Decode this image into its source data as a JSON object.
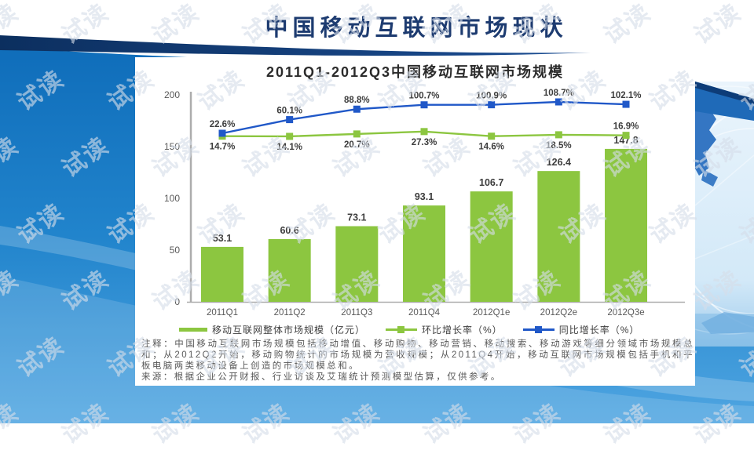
{
  "slide": {
    "title": "中国移动互联网市场现状",
    "watermark_text": "试读"
  },
  "chart_data": {
    "type": "bar",
    "title": "2011Q1-2012Q3中国移动互联网市场规模",
    "categories": [
      "2011Q1",
      "2011Q2",
      "2011Q3",
      "2011Q4",
      "2012Q1e",
      "2012Q2e",
      "2012Q3e"
    ],
    "series": [
      {
        "name": "移动互联网整体市场规模（亿元）",
        "type": "bar",
        "color": "#8CC640",
        "values": [
          53.1,
          60.6,
          73.1,
          93.1,
          106.7,
          126.4,
          147.8
        ]
      },
      {
        "name": "环比增长率（%）",
        "type": "line",
        "color": "#8CC640",
        "values": [
          14.7,
          14.1,
          20.7,
          27.3,
          14.6,
          18.5,
          16.9
        ]
      },
      {
        "name": "同比增长率（%）",
        "type": "line",
        "color": "#2058C8",
        "values": [
          22.6,
          60.1,
          88.8,
          100.7,
          100.9,
          108.7,
          102.1
        ]
      }
    ],
    "y_axis": {
      "ticks": [
        0,
        50,
        100,
        150,
        200
      ],
      "max": 200
    },
    "legend_position": "bottom",
    "grid": false
  },
  "footnotes": {
    "note": "注释：中国移动互联网市场规模包括移动增值、移动购物、移动营销、移动搜索、移动游戏等细分领域市场规模总和；从2012Q2开始，移动购物统计的市场规模为营收规模；从2011Q4开始，移动互联网市场规模包括手机和平板电脑两类移动设备上创造的市场规模总和。",
    "source": "来源：根据企业公开财报、行业访谈及艾瑞统计预测模型估算，仅供参考。"
  },
  "colors": {
    "title_navy": "#1D3B70",
    "body_blue_top": "#0F6DBA",
    "body_blue_bottom": "#4FA5E1",
    "band_navy": "#0C2F5F",
    "axis_gray": "#ACACAC",
    "label_gray": "#595959",
    "value_gray": "#3d3d3d",
    "watermark": "#D5DDE8"
  }
}
